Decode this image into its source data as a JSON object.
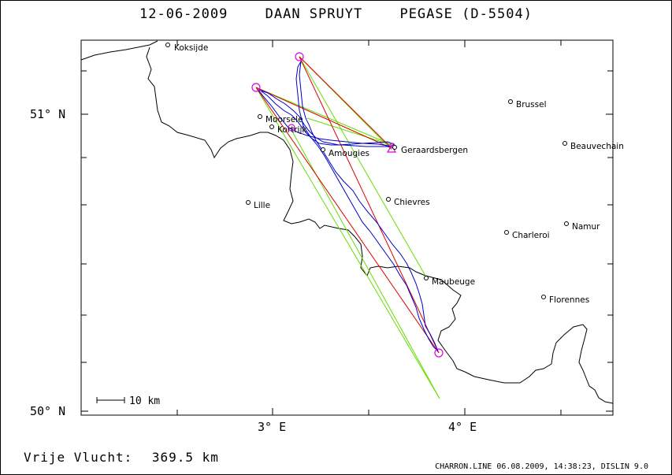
{
  "title": {
    "date": "12-06-2009",
    "pilot": "DAAN SPRUYT",
    "glider": "PEGASE (D-5504)"
  },
  "axes": {
    "y_labels": [
      "51° N",
      "50° N"
    ],
    "x_labels": [
      "3° E",
      "4° E"
    ]
  },
  "scale_bar": {
    "label": "10 km"
  },
  "footer": {
    "label": "Vrije Vlucht:",
    "distance": "369.5 km",
    "credit": "CHARRON.LINE 06.08.2009, 14:38:23, DISLIN 9.0"
  },
  "places": [
    {
      "name": "Koksijde"
    },
    {
      "name": "Brussel"
    },
    {
      "name": "Moorsele"
    },
    {
      "name": "Kortrijk"
    },
    {
      "name": "Beauvechain"
    },
    {
      "name": "Geraardsbergen"
    },
    {
      "name": "Amougies"
    },
    {
      "name": "Chievres"
    },
    {
      "name": "Lille"
    },
    {
      "name": "Namur"
    },
    {
      "name": "Charleroi"
    },
    {
      "name": "Maubeuge"
    },
    {
      "name": "Florennes"
    }
  ],
  "colors": {
    "track": "#0000cc",
    "task_leg": "#dd0000",
    "sector": "#66dd00",
    "turnpoint": "#dd00dd",
    "border": "#000000"
  }
}
